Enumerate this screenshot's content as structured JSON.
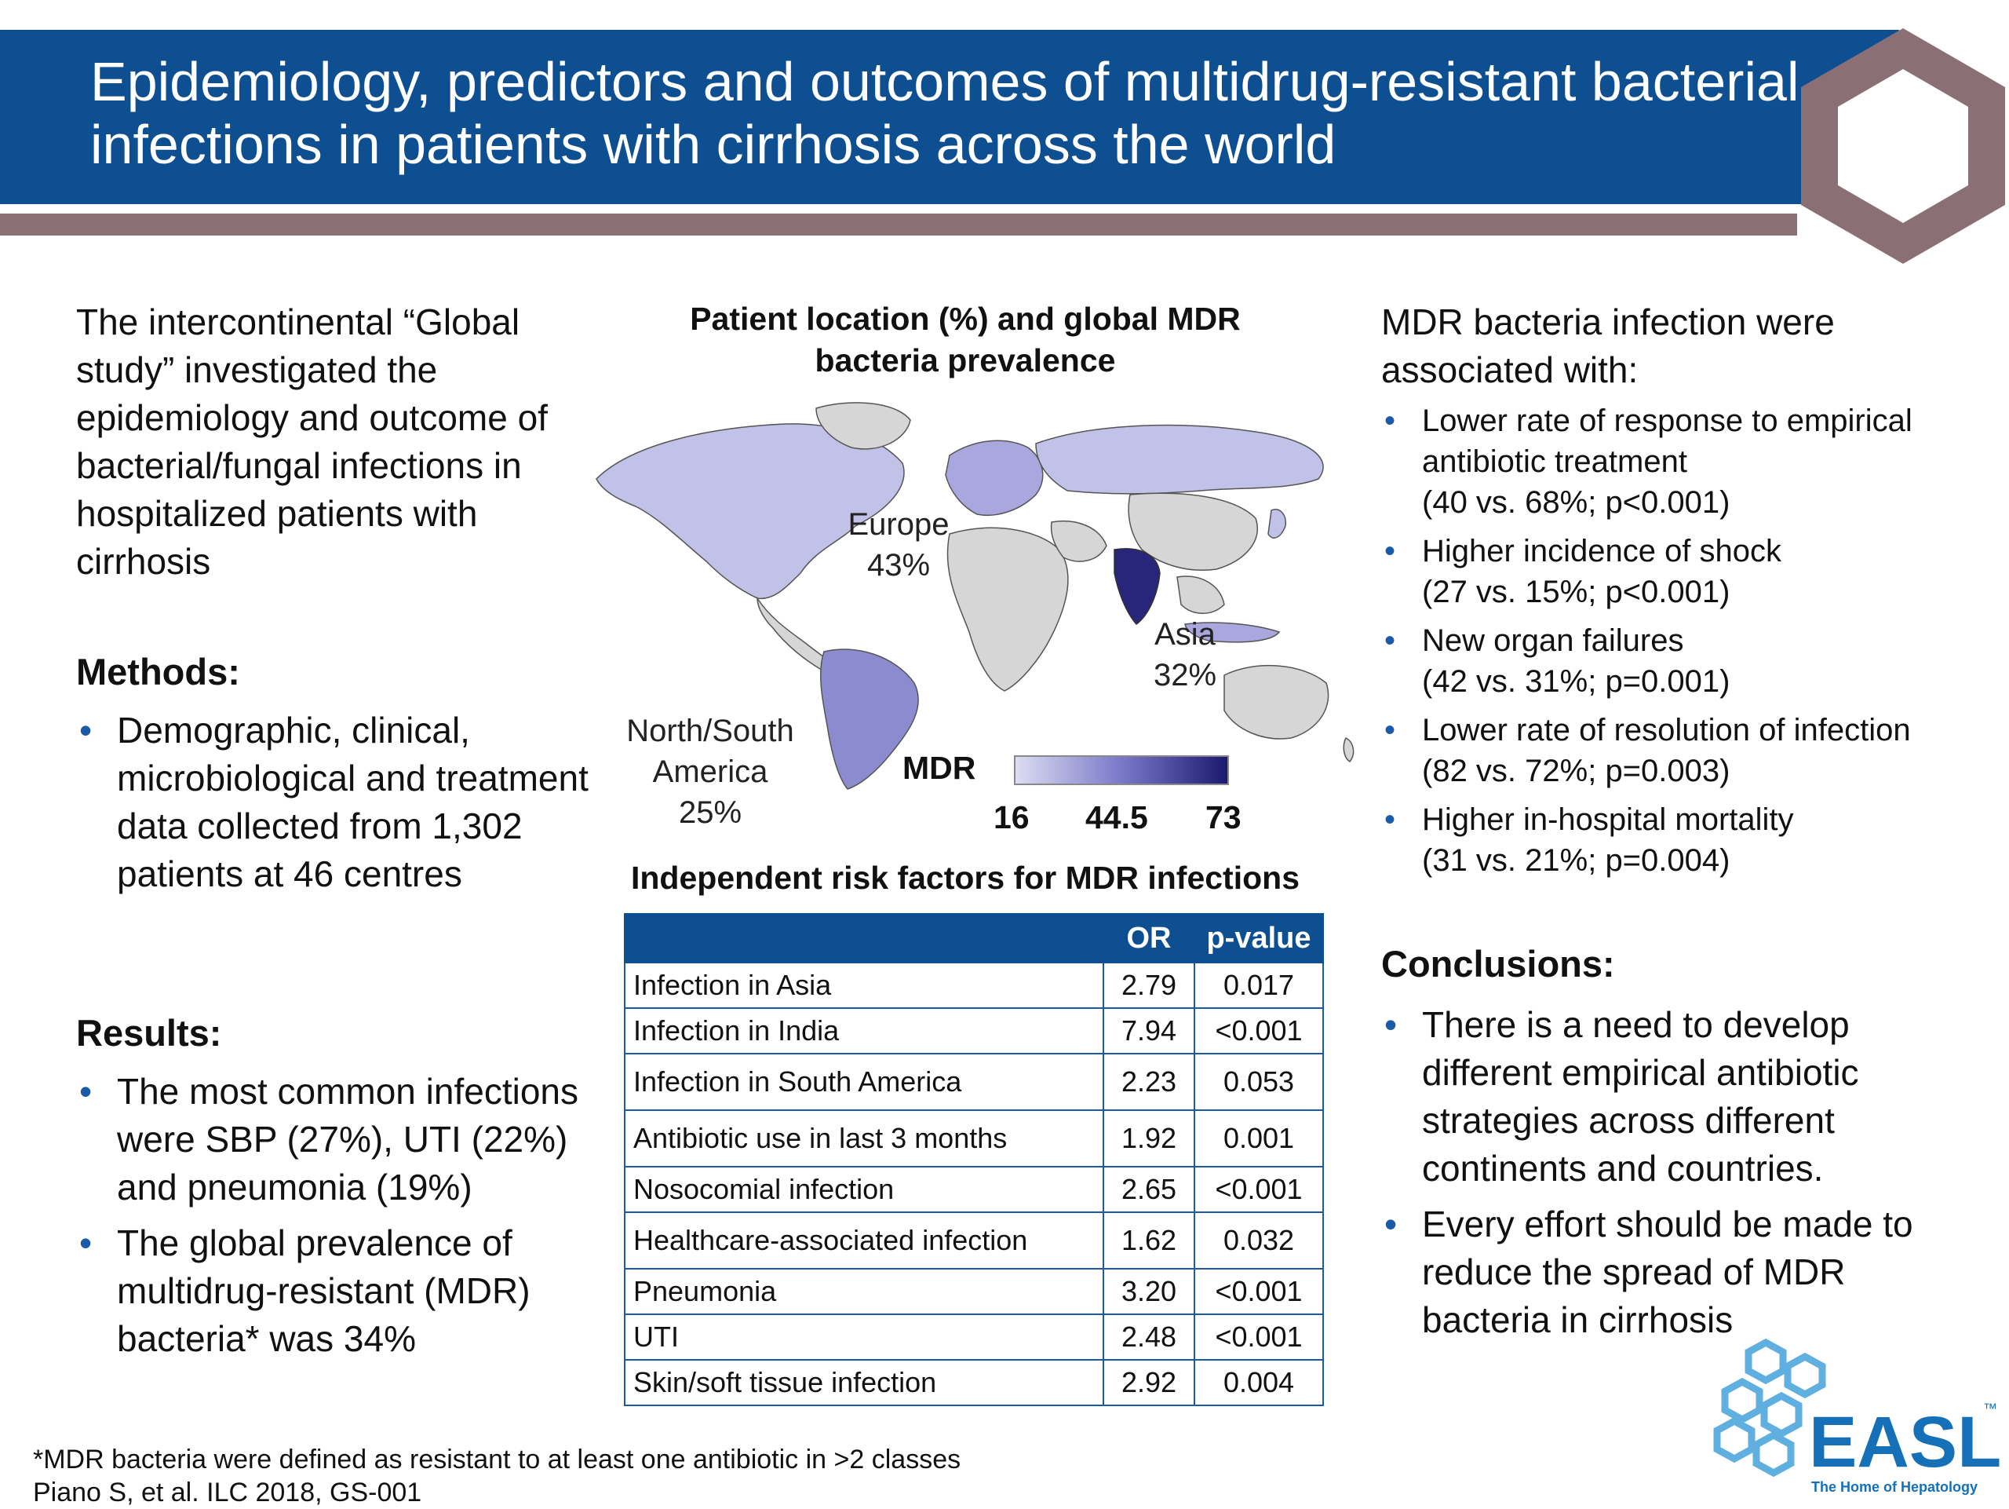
{
  "header": {
    "title": "Epidemiology, predictors and outcomes of multidrug-resistant bacterial infections in patients with cirrhosis across the world"
  },
  "left": {
    "intro": "The intercontinental “Global study” investigated the epidemiology and outcome of bacterial/fungal infections in hospitalized patients with cirrhosis",
    "methods_heading": "Methods:",
    "methods_items": [
      "Demographic, clinical, microbiological and treatment data collected from 1,302 patients at 46 centres"
    ],
    "results_heading": "Results:",
    "results_items": [
      "The most common infections were SBP (27%), UTI (22%) and pneumonia (19%)",
      "The global prevalence of multidrug-resistant (MDR) bacteria* was 34%"
    ]
  },
  "map": {
    "title": "Patient location (%) and global MDR bacteria prevalence",
    "regions": [
      {
        "name": "Europe",
        "percent": "43%"
      },
      {
        "name": "Asia",
        "percent": "32%"
      },
      {
        "name": "North/South America",
        "percent": "25%"
      }
    ],
    "legend": {
      "label": "MDR",
      "ticks": [
        "16",
        "44.5",
        "73"
      ],
      "color_low": "#dcdcf2",
      "color_mid": "#7a78c8",
      "color_high": "#1c1a6e"
    }
  },
  "table": {
    "title": "Independent risk factors for MDR infections",
    "headers": [
      "",
      "OR",
      "p-value"
    ],
    "rows": [
      {
        "factor": "Infection in Asia",
        "or": "2.79",
        "p": "0.017"
      },
      {
        "factor": "Infection in India",
        "or": "7.94",
        "p": "<0.001"
      },
      {
        "factor": "Infection in South America",
        "or": "2.23",
        "p": "0.053"
      },
      {
        "factor": "Antibiotic use in last 3 months",
        "or": "1.92",
        "p": "0.001"
      },
      {
        "factor": "Nosocomial infection",
        "or": "2.65",
        "p": "<0.001"
      },
      {
        "factor": "Healthcare-associated infection",
        "or": "1.62",
        "p": "0.032"
      },
      {
        "factor": "Pneumonia",
        "or": "3.20",
        "p": "<0.001"
      },
      {
        "factor": "UTI",
        "or": "2.48",
        "p": "<0.001"
      },
      {
        "factor": "Skin/soft tissue infection",
        "or": "2.92",
        "p": "0.004"
      }
    ]
  },
  "right": {
    "intro": "MDR bacteria infection were associated with:",
    "associations": [
      {
        "text": "Lower rate of response to empirical antibiotic treatment",
        "stat": "(40 vs. 68%; p<0.001)"
      },
      {
        "text": "Higher incidence of shock",
        "stat": "(27 vs. 15%; p<0.001)"
      },
      {
        "text": "New organ failures",
        "stat": "(42 vs. 31%; p=0.001)"
      },
      {
        "text": "Lower rate of resolution of infection",
        "stat": "(82 vs. 72%; p=0.003)"
      },
      {
        "text": "Higher in-hospital mortality",
        "stat": "(31 vs. 21%; p=0.004)"
      }
    ],
    "conclusions_heading": "Conclusions:",
    "conclusions": [
      "There is a need to develop different empirical antibiotic strategies across different continents and countries.",
      "Every effort should be made to reduce the spread of MDR bacteria in cirrhosis"
    ]
  },
  "footer": {
    "footnote": "*MDR bacteria were defined as resistant to at least one antibiotic in >2 classes",
    "citation": "Piano S, et al. ILC 2018, GS-001"
  },
  "logo": {
    "name": "EASL",
    "trademark": "™",
    "tagline": "The Home of Hepatology"
  },
  "colors": {
    "header_blue": "#0e4f92",
    "stripe_mauve": "#8a6f74",
    "bullet_blue": "#1a5aa6",
    "logo_blue": "#1570b8",
    "logo_light": "#5fb0e0"
  }
}
